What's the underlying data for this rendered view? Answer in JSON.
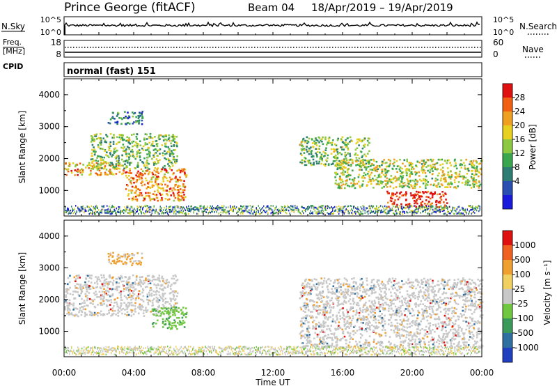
{
  "header": {
    "station": "Prince George (fitACF)",
    "beam": "Beam 04",
    "dates": "18/Apr/2019 – 19/Apr/2019"
  },
  "nsky": {
    "left_label": "N.Sky",
    "left_ticks": [
      "10^5",
      "10^0"
    ],
    "right_label": "N.Search",
    "right_ticks": [
      "10^5",
      "10^0"
    ]
  },
  "freq": {
    "left_label_1": "Freq.",
    "left_label_2": "[MHz]",
    "left_ticks": [
      "18",
      "8"
    ],
    "right_label": "Nave",
    "right_ticks": [
      "60",
      "0"
    ]
  },
  "cpid": {
    "label": "CPID",
    "mode": "normal (fast) 151"
  },
  "chart_data": [
    {
      "type": "heatmap",
      "name": "power",
      "ylabel": "Slant Range [km]",
      "yticks": [
        "4000",
        "3000",
        "2000",
        "1000"
      ],
      "ylim": [
        200,
        4500
      ],
      "colorbar_label": "Power [dB]",
      "colorbar_ticks": [
        "28",
        "24",
        "20",
        "16",
        "12",
        "8",
        "4"
      ],
      "colors": [
        "#1a1adc",
        "#2b4fb0",
        "#2e7d72",
        "#3aa650",
        "#8cc840",
        "#e8d020",
        "#f0a020",
        "#f06010",
        "#e01010"
      ],
      "regions": [
        {
          "t": [
            0.0,
            3.5
          ],
          "r": [
            1500,
            1900
          ],
          "level": 0.7
        },
        {
          "t": [
            1.5,
            6.5
          ],
          "r": [
            1700,
            2800
          ],
          "level": 0.45
        },
        {
          "t": [
            2.5,
            4.5
          ],
          "r": [
            3100,
            3500
          ],
          "level": 0.25
        },
        {
          "t": [
            3.5,
            7.0
          ],
          "r": [
            700,
            1700
          ],
          "level": 0.75
        },
        {
          "t": [
            13.5,
            17.5
          ],
          "r": [
            1800,
            2700
          ],
          "level": 0.45
        },
        {
          "t": [
            15.5,
            24.0
          ],
          "r": [
            1100,
            2000
          ],
          "level": 0.55
        },
        {
          "t": [
            18.5,
            22.0
          ],
          "r": [
            500,
            1000
          ],
          "level": 0.95
        }
      ]
    },
    {
      "type": "heatmap",
      "name": "velocity",
      "ylabel": "Slant Range [km]",
      "yticks": [
        "4000",
        "3000",
        "2000",
        "1000"
      ],
      "ylim": [
        200,
        4500
      ],
      "colorbar_label": "Velocity [m s⁻¹]",
      "colorbar_ticks": [
        "1000",
        "500",
        "100",
        "25",
        "-25",
        "-100",
        "-500",
        "-1000"
      ],
      "colors": [
        "#2040c0",
        "#3070a0",
        "#3a9a5a",
        "#70c840",
        "#c8c8c8",
        "#f0d060",
        "#f0a030",
        "#f06020",
        "#e01010"
      ],
      "regions": [
        {
          "t": [
            0.0,
            6.5
          ],
          "r": [
            1500,
            2800
          ],
          "class": "grey"
        },
        {
          "t": [
            2.5,
            4.5
          ],
          "r": [
            3100,
            3500
          ],
          "class": "orange"
        },
        {
          "t": [
            5.0,
            7.0
          ],
          "r": [
            1100,
            1800
          ],
          "class": "green"
        },
        {
          "t": [
            13.5,
            24.0
          ],
          "r": [
            500,
            2700
          ],
          "class": "grey"
        }
      ]
    }
  ],
  "xaxis": {
    "ticks": [
      "00:00",
      "04:00",
      "08:00",
      "12:00",
      "16:00",
      "20:00",
      "00:00"
    ],
    "label": "Time UT"
  }
}
